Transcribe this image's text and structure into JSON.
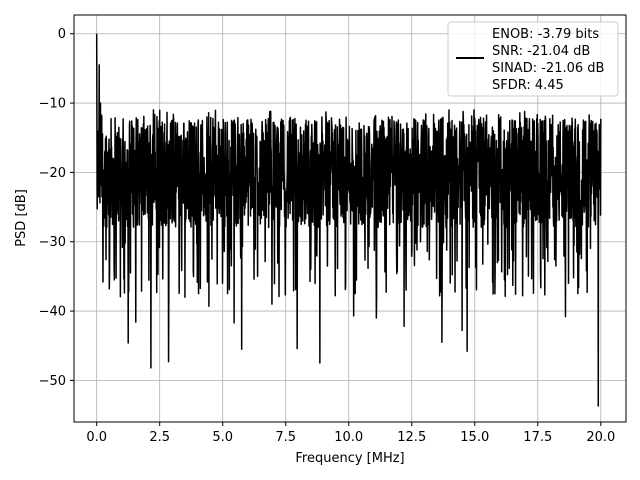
{
  "chart_data": {
    "type": "line",
    "xlabel": "Frequency [MHz]",
    "ylabel": "PSD [dB]",
    "xlim": [
      -0.9,
      21.0
    ],
    "ylim": [
      -56,
      2.7
    ],
    "xticks": [
      0.0,
      2.5,
      5.0,
      7.5,
      10.0,
      12.5,
      15.0,
      17.5,
      20.0
    ],
    "xtick_labels": [
      "0.0",
      "2.5",
      "5.0",
      "7.5",
      "10.0",
      "12.5",
      "15.0",
      "17.5",
      "20.0"
    ],
    "yticks": [
      0,
      -10,
      -20,
      -30,
      -40,
      -50
    ],
    "ytick_labels": [
      "0",
      "−10",
      "−20",
      "−30",
      "−40",
      "−50"
    ],
    "grid": true,
    "legend_position": "top-right",
    "legend_lines": [
      "ENOB: -3.79 bits",
      "SNR: -21.04 dB",
      "SINAD: -21.06 dB",
      "SFDR: 4.45"
    ],
    "series_color": "#000000",
    "x_range": [
      0.0,
      20.0
    ],
    "points": 2000,
    "noise_band": {
      "typical_min": -28,
      "typical_max": -12,
      "median": -20
    },
    "peaks": [
      {
        "x": 0.0,
        "y": 0.0
      },
      {
        "x": 0.05,
        "y": -23.5
      },
      {
        "x": 0.1,
        "y": -4.5
      },
      {
        "x": 0.15,
        "y": -10.0
      }
    ],
    "dips": [
      {
        "x": 0.25,
        "y": -35.8
      },
      {
        "x": 0.5,
        "y": -36.8
      },
      {
        "x": 0.7,
        "y": -35.5
      },
      {
        "x": 1.25,
        "y": -44.6
      },
      {
        "x": 1.55,
        "y": -41.6
      },
      {
        "x": 2.15,
        "y": -48.2
      },
      {
        "x": 2.85,
        "y": -47.3
      },
      {
        "x": 3.5,
        "y": -38.0
      },
      {
        "x": 4.45,
        "y": -39.3
      },
      {
        "x": 5.45,
        "y": -41.7
      },
      {
        "x": 5.75,
        "y": -45.5
      },
      {
        "x": 6.95,
        "y": -39.0
      },
      {
        "x": 7.95,
        "y": -45.4
      },
      {
        "x": 8.85,
        "y": -47.5
      },
      {
        "x": 10.2,
        "y": -40.7
      },
      {
        "x": 11.1,
        "y": -41.0
      },
      {
        "x": 12.2,
        "y": -42.2
      },
      {
        "x": 13.7,
        "y": -44.5
      },
      {
        "x": 14.5,
        "y": -42.8
      },
      {
        "x": 14.7,
        "y": -45.8
      },
      {
        "x": 15.8,
        "y": -37.5
      },
      {
        "x": 16.9,
        "y": -37.8
      },
      {
        "x": 18.6,
        "y": -40.8
      },
      {
        "x": 19.9,
        "y": -53.7
      }
    ]
  }
}
